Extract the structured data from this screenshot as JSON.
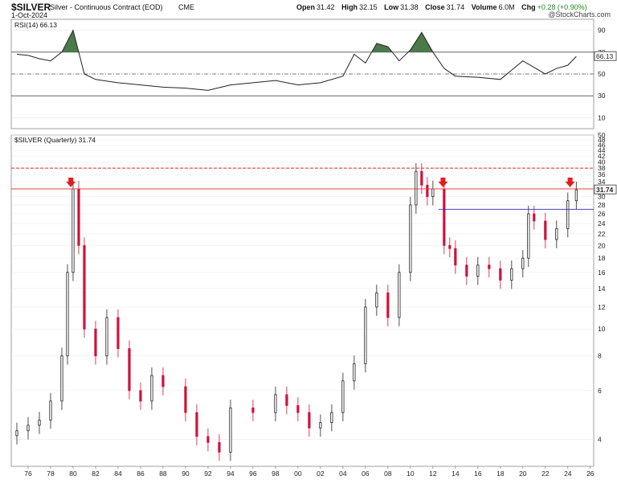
{
  "header": {
    "symbol": "$SILVER",
    "description": "Silver - Continuous Contract (EOD)",
    "exchange": "CME",
    "date": "1-Oct-2024",
    "open_label": "Open",
    "open": "31.42",
    "high_label": "High",
    "high": "32.15",
    "low_label": "Low",
    "low": "31.38",
    "close_label": "Close",
    "close": "31.74",
    "volume_label": "Volume",
    "volume": "6.0M",
    "chg_label": "Chg",
    "chg": "+0.28 (+0.90%)",
    "brand": "@StockCharts.com"
  },
  "colors": {
    "up": "#222222",
    "down": "#d0103a",
    "rsi_line": "#222222",
    "rsi_fill": "#4a7a4a",
    "red_line": "#e8282a",
    "blue_line": "#2a2aaa",
    "arrow": "#e02020"
  },
  "chart_data": [
    {
      "type": "line",
      "title": "RSI(14) 66.13",
      "ylim": [
        0,
        100
      ],
      "yticks": [
        10,
        30,
        50,
        70,
        90
      ],
      "levels": [
        70,
        50,
        30
      ],
      "last_value_label": "66.13",
      "x": [
        1975,
        1976,
        1977,
        1978,
        1979,
        1979.5,
        1980,
        1981,
        1982,
        1984,
        1986,
        1988,
        1990,
        1992,
        1994,
        1996,
        1998,
        2000,
        2002,
        2004,
        2005,
        2006,
        2007,
        2008,
        2009,
        2010,
        2011,
        2012,
        2013,
        2014,
        2016,
        2018,
        2020,
        2021,
        2022,
        2023,
        2024,
        2024.75
      ],
      "values": [
        68,
        67,
        64,
        62,
        70,
        80,
        90,
        50,
        45,
        42,
        40,
        38,
        37,
        35,
        40,
        42,
        44,
        40,
        42,
        48,
        68,
        60,
        78,
        75,
        62,
        72,
        88,
        70,
        55,
        48,
        47,
        45,
        62,
        56,
        50,
        55,
        58,
        66
      ]
    },
    {
      "type": "candlestick",
      "title": "$SILVER (Quarterly) 31.74",
      "ylim": [
        3.2,
        50
      ],
      "log_scale": true,
      "yticks": [
        4,
        6,
        8,
        10,
        12,
        14,
        16,
        18,
        20,
        22,
        24,
        26,
        28,
        30,
        32,
        34,
        36,
        38,
        40,
        42,
        44,
        46,
        48,
        50
      ],
      "xticks": [
        "76",
        "78",
        "80",
        "82",
        "84",
        "86",
        "88",
        "90",
        "92",
        "94",
        "96",
        "98",
        "00",
        "02",
        "04",
        "06",
        "08",
        "10",
        "12",
        "14",
        "16",
        "18",
        "20",
        "22",
        "24",
        "26"
      ],
      "last_value_label": "31.74",
      "x": [
        1975,
        1976,
        1977,
        1978,
        1979,
        1979.5,
        1980,
        1980.5,
        1981,
        1982,
        1983,
        1984,
        1985,
        1986,
        1987,
        1988,
        1990,
        1991,
        1992,
        1993,
        1994,
        1996,
        1998,
        1999,
        2000,
        2001,
        2002,
        2003,
        2004,
        2005,
        2006,
        2007,
        2008,
        2009,
        2010,
        2010.5,
        2011,
        2011.5,
        2012,
        2013,
        2013.5,
        2014,
        2015,
        2016,
        2017,
        2018,
        2019,
        2020,
        2020.5,
        2021,
        2022,
        2023,
        2024,
        2024.75
      ],
      "close": [
        4.3,
        4.5,
        4.7,
        5.5,
        8.0,
        16.0,
        32.0,
        20.0,
        10.0,
        8.0,
        11.0,
        8.5,
        6.0,
        5.5,
        6.8,
        6.2,
        5.0,
        4.1,
        3.9,
        3.6,
        5.2,
        5.0,
        5.8,
        5.3,
        5.0,
        4.4,
        4.6,
        5.0,
        6.5,
        7.5,
        12.0,
        13.5,
        11.0,
        16.0,
        28.0,
        37.0,
        33.0,
        30.0,
        32.0,
        20.0,
        19.5,
        17.0,
        15.5,
        17.0,
        16.5,
        15.0,
        16.5,
        18.0,
        26.0,
        24.5,
        21.0,
        23.0,
        29.0,
        31.74
      ],
      "horizontal_levels": [
        {
          "value": 38,
          "style": "dashed",
          "color": "red"
        },
        {
          "value": 32,
          "style": "solid",
          "color": "red"
        },
        {
          "value": 27,
          "style": "solid",
          "color": "blue"
        }
      ],
      "arrows_at_x": [
        1979.8,
        2012.9,
        2024.2
      ]
    }
  ]
}
